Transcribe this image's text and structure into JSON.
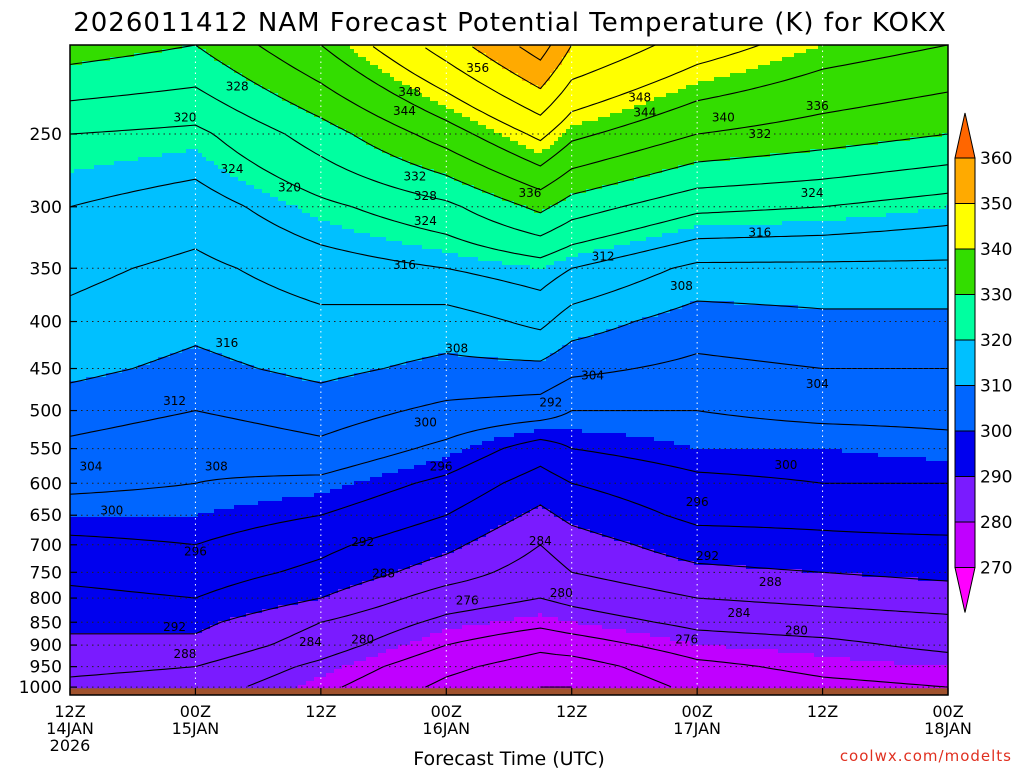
{
  "chart_data": {
    "type": "contour",
    "title": "2026011412 NAM Forecast Potential Temperature (K) for KOKX",
    "xlabel": "Forecast Time (UTC)",
    "ylabel": "",
    "x_ticks": [
      {
        "hour": 0,
        "line1": "12Z",
        "line2": "14JAN",
        "line3": "2026"
      },
      {
        "hour": 12,
        "line1": "00Z",
        "line2": "15JAN",
        "line3": ""
      },
      {
        "hour": 24,
        "line1": "12Z",
        "line2": "",
        "line3": ""
      },
      {
        "hour": 36,
        "line1": "00Z",
        "line2": "16JAN",
        "line3": ""
      },
      {
        "hour": 48,
        "line1": "12Z",
        "line2": "",
        "line3": ""
      },
      {
        "hour": 60,
        "line1": "00Z",
        "line2": "17JAN",
        "line3": ""
      },
      {
        "hour": 72,
        "line1": "12Z",
        "line2": "",
        "line3": ""
      },
      {
        "hour": 84,
        "line1": "00Z",
        "line2": "18JAN",
        "line3": ""
      }
    ],
    "x_range_hours": [
      0,
      84
    ],
    "y_ticks": [
      "250",
      "300",
      "350",
      "400",
      "450",
      "500",
      "550",
      "600",
      "650",
      "700",
      "750",
      "800",
      "850",
      "900",
      "950",
      "1000"
    ],
    "y_tick_values": [
      250,
      300,
      350,
      400,
      450,
      500,
      550,
      600,
      650,
      700,
      750,
      800,
      850,
      900,
      950,
      1000
    ],
    "y_range_hpa": [
      200,
      1020
    ],
    "y_scale": "log-pressure",
    "grid": true,
    "colorbar": {
      "labels": [
        "270",
        "280",
        "290",
        "300",
        "310",
        "320",
        "330",
        "340",
        "350",
        "360"
      ],
      "levels": [
        270,
        280,
        290,
        300,
        310,
        320,
        330,
        340,
        350,
        360
      ],
      "colors": [
        "#ff00ff",
        "#c000ff",
        "#7a1bff",
        "#0000ee",
        "#0066ff",
        "#00c0ff",
        "#00ffa0",
        "#33dd00",
        "#ffff00",
        "#ffaa00",
        "#ff6600"
      ]
    },
    "contour_interval": 4,
    "profile_pressures": [
      200,
      250,
      300,
      350,
      400,
      450,
      500,
      550,
      600,
      650,
      700,
      750,
      800,
      850,
      900,
      950,
      1000
    ],
    "profile_columns_hours": [
      0,
      12,
      24,
      36,
      45,
      48,
      60,
      72,
      84
    ],
    "theta_profiles": [
      [
        332,
        322,
        318,
        315,
        313,
        311,
        308,
        305,
        303,
        300,
        297,
        295,
        293,
        291,
        289,
        287,
        285
      ],
      [
        330,
        321,
        316,
        313,
        311,
        309,
        306,
        303,
        302,
        300,
        298,
        296,
        294,
        291,
        289,
        286,
        284
      ],
      [
        338,
        328,
        321,
        316,
        313,
        311,
        308,
        305,
        301,
        298,
        295,
        293,
        290,
        286,
        284,
        281,
        279
      ],
      [
        348,
        336,
        325,
        318,
        312,
        309,
        305,
        301,
        297,
        294,
        291,
        288,
        284,
        281,
        278,
        275,
        273
      ],
      [
        356,
        343,
        331,
        320,
        315,
        309,
        304,
        296,
        292,
        289,
        286,
        284,
        282,
        279,
        275,
        272,
        270
      ],
      [
        350,
        339,
        328,
        318,
        312,
        307,
        302,
        298,
        294,
        291,
        288,
        286,
        283,
        280,
        276,
        272,
        270
      ],
      [
        344,
        334,
        323,
        313,
        308,
        305,
        302,
        300,
        297,
        295,
        292,
        289,
        286,
        283,
        280,
        277,
        275
      ],
      [
        340,
        332,
        322,
        313,
        309,
        306,
        303,
        300,
        298,
        295,
        293,
        290,
        287,
        284,
        281,
        279,
        277
      ],
      [
        338,
        330,
        320,
        313,
        309,
        306,
        303,
        301,
        298,
        296,
        293,
        291,
        288,
        285,
        283,
        280,
        278
      ]
    ],
    "contour_labels": [
      {
        "text": "356",
        "hour": 39,
        "p": 212
      },
      {
        "text": "348",
        "hour": 32.5,
        "p": 225
      },
      {
        "text": "344",
        "hour": 32,
        "p": 236
      },
      {
        "text": "348",
        "hour": 54.5,
        "p": 228
      },
      {
        "text": "344",
        "hour": 55,
        "p": 237
      },
      {
        "text": "340",
        "hour": 62.5,
        "p": 240
      },
      {
        "text": "336",
        "hour": 71.5,
        "p": 233
      },
      {
        "text": "332",
        "hour": 66,
        "p": 250
      },
      {
        "text": "328",
        "hour": 16,
        "p": 222
      },
      {
        "text": "320",
        "hour": 11,
        "p": 240
      },
      {
        "text": "324",
        "hour": 15.5,
        "p": 273
      },
      {
        "text": "320",
        "hour": 21,
        "p": 286
      },
      {
        "text": "332",
        "hour": 33,
        "p": 278
      },
      {
        "text": "328",
        "hour": 34,
        "p": 292
      },
      {
        "text": "336",
        "hour": 44,
        "p": 290
      },
      {
        "text": "324",
        "hour": 34,
        "p": 311
      },
      {
        "text": "324",
        "hour": 71,
        "p": 290
      },
      {
        "text": "316",
        "hour": 66,
        "p": 320
      },
      {
        "text": "316",
        "hour": 32,
        "p": 347
      },
      {
        "text": "312",
        "hour": 51,
        "p": 340
      },
      {
        "text": "308",
        "hour": 58.5,
        "p": 366
      },
      {
        "text": "316",
        "hour": 15,
        "p": 422
      },
      {
        "text": "308",
        "hour": 37,
        "p": 428
      },
      {
        "text": "304",
        "hour": 50,
        "p": 458
      },
      {
        "text": "304",
        "hour": 71.5,
        "p": 468
      },
      {
        "text": "312",
        "hour": 10,
        "p": 488
      },
      {
        "text": "300",
        "hour": 34,
        "p": 515
      },
      {
        "text": "292",
        "hour": 46,
        "p": 490
      },
      {
        "text": "304",
        "hour": 2,
        "p": 575
      },
      {
        "text": "308",
        "hour": 14,
        "p": 575
      },
      {
        "text": "300",
        "hour": 68.5,
        "p": 573
      },
      {
        "text": "296",
        "hour": 35.5,
        "p": 575
      },
      {
        "text": "300",
        "hour": 4,
        "p": 642
      },
      {
        "text": "296",
        "hour": 60,
        "p": 629
      },
      {
        "text": "296",
        "hour": 12,
        "p": 712
      },
      {
        "text": "292",
        "hour": 28,
        "p": 695
      },
      {
        "text": "284",
        "hour": 45,
        "p": 693
      },
      {
        "text": "292",
        "hour": 61,
        "p": 720
      },
      {
        "text": "288",
        "hour": 30,
        "p": 752
      },
      {
        "text": "288",
        "hour": 67,
        "p": 768
      },
      {
        "text": "280",
        "hour": 47,
        "p": 790
      },
      {
        "text": "276",
        "hour": 38,
        "p": 805
      },
      {
        "text": "284",
        "hour": 64,
        "p": 830
      },
      {
        "text": "292",
        "hour": 10,
        "p": 860
      },
      {
        "text": "284",
        "hour": 23,
        "p": 893
      },
      {
        "text": "280",
        "hour": 28,
        "p": 888
      },
      {
        "text": "280",
        "hour": 69.5,
        "p": 868
      },
      {
        "text": "276",
        "hour": 59,
        "p": 888
      },
      {
        "text": "288",
        "hour": 11,
        "p": 920
      }
    ]
  },
  "credit": "coolwx.com/modelts",
  "colors": {
    "ground": "#a0522d",
    "credit": "#e03020",
    "background": "#ffffff"
  }
}
